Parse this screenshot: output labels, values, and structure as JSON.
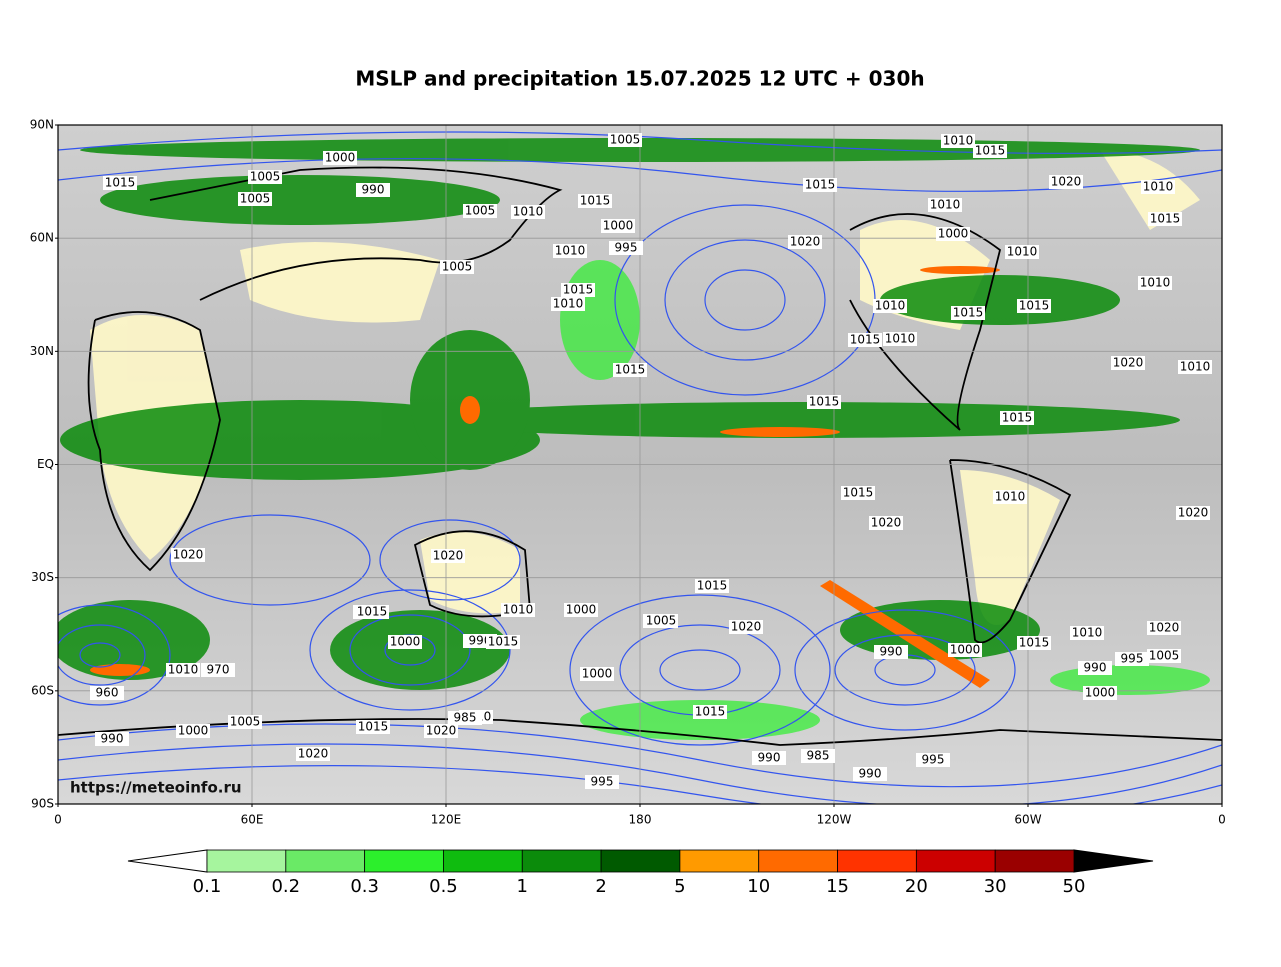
{
  "map": {
    "title": "MSLP and precipitation 15.07.2025 12 UTC + 030h",
    "lat_labels": [
      "90N",
      "60N",
      "30N",
      "EQ",
      "30S",
      "60S",
      "90S"
    ],
    "lon_labels": [
      "0",
      "60E",
      "120E",
      "180",
      "120W",
      "60W",
      "0"
    ],
    "watermark": "https://meteoinfo.ru",
    "colorbar": {
      "ticks": [
        0.1,
        0.2,
        0.3,
        0.5,
        1,
        2,
        5,
        10,
        15,
        20,
        30,
        50
      ],
      "colors": [
        "#a6f59e",
        "#6aea66",
        "#2cef2c",
        "#0fbc0f",
        "#0b8b0b",
        "#005a00",
        "#ff9a00",
        "#ff6a00",
        "#ff3300",
        "#cc0000",
        "#9a0000"
      ],
      "under_color": "#ffffff",
      "over_color": "#000000"
    },
    "isobar_labels": [
      1005,
      1000,
      1015,
      1005,
      990,
      1005,
      1010,
      1015,
      1000,
      995,
      1010,
      1020,
      1015,
      1010,
      1015,
      1020,
      1010,
      1015,
      1010,
      1010,
      1015,
      1010,
      1005,
      1000,
      1005,
      1015,
      1010,
      1010,
      1015,
      1015,
      1020,
      1015,
      1010,
      1010,
      1015,
      1020,
      1020,
      1020,
      1015,
      1005,
      1000,
      990,
      1010,
      1015,
      1020,
      970,
      990,
      1015,
      1000,
      1020,
      1015,
      1000,
      985,
      990,
      1000,
      1010,
      1015,
      1005,
      1020,
      1010,
      1000,
      990,
      960,
      1005,
      1000,
      995,
      1020,
      1010,
      1015,
      1005,
      990,
      995,
      1015,
      1020,
      1015,
      990,
      995,
      985,
      1010,
      1015
    ]
  }
}
